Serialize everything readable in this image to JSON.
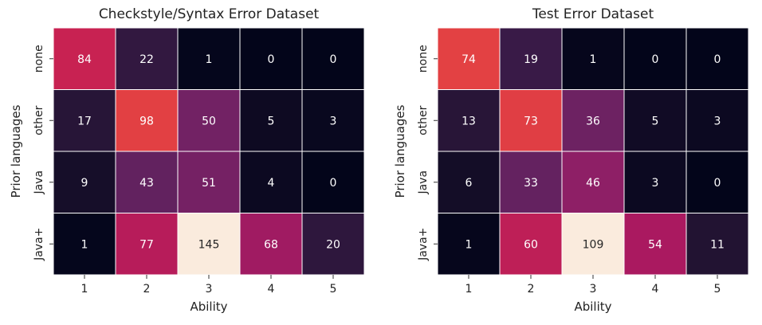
{
  "chart_data": [
    {
      "type": "heatmap",
      "title": "Checkstyle/Syntax Error Dataset",
      "xlabel": "Ability",
      "ylabel": "Prior languages",
      "x_categories": [
        "1",
        "2",
        "3",
        "4",
        "5"
      ],
      "y_categories": [
        "none",
        "other",
        "Java",
        "Java+"
      ],
      "values": [
        [
          84,
          22,
          1,
          0,
          0
        ],
        [
          17,
          98,
          50,
          5,
          3
        ],
        [
          9,
          43,
          51,
          4,
          0
        ],
        [
          1,
          77,
          145,
          68,
          20
        ]
      ],
      "annotated": true,
      "colorbar": false,
      "colormap": "rocket"
    },
    {
      "type": "heatmap",
      "title": "Test Error Dataset",
      "xlabel": "Ability",
      "ylabel": "Prior languages",
      "x_categories": [
        "1",
        "2",
        "3",
        "4",
        "5"
      ],
      "y_categories": [
        "none",
        "other",
        "Java",
        "Java+"
      ],
      "values": [
        [
          74,
          19,
          1,
          0,
          0
        ],
        [
          13,
          73,
          36,
          5,
          3
        ],
        [
          6,
          33,
          46,
          3,
          0
        ],
        [
          1,
          60,
          109,
          54,
          11
        ]
      ],
      "annotated": true,
      "colorbar": false,
      "colormap": "rocket"
    }
  ]
}
